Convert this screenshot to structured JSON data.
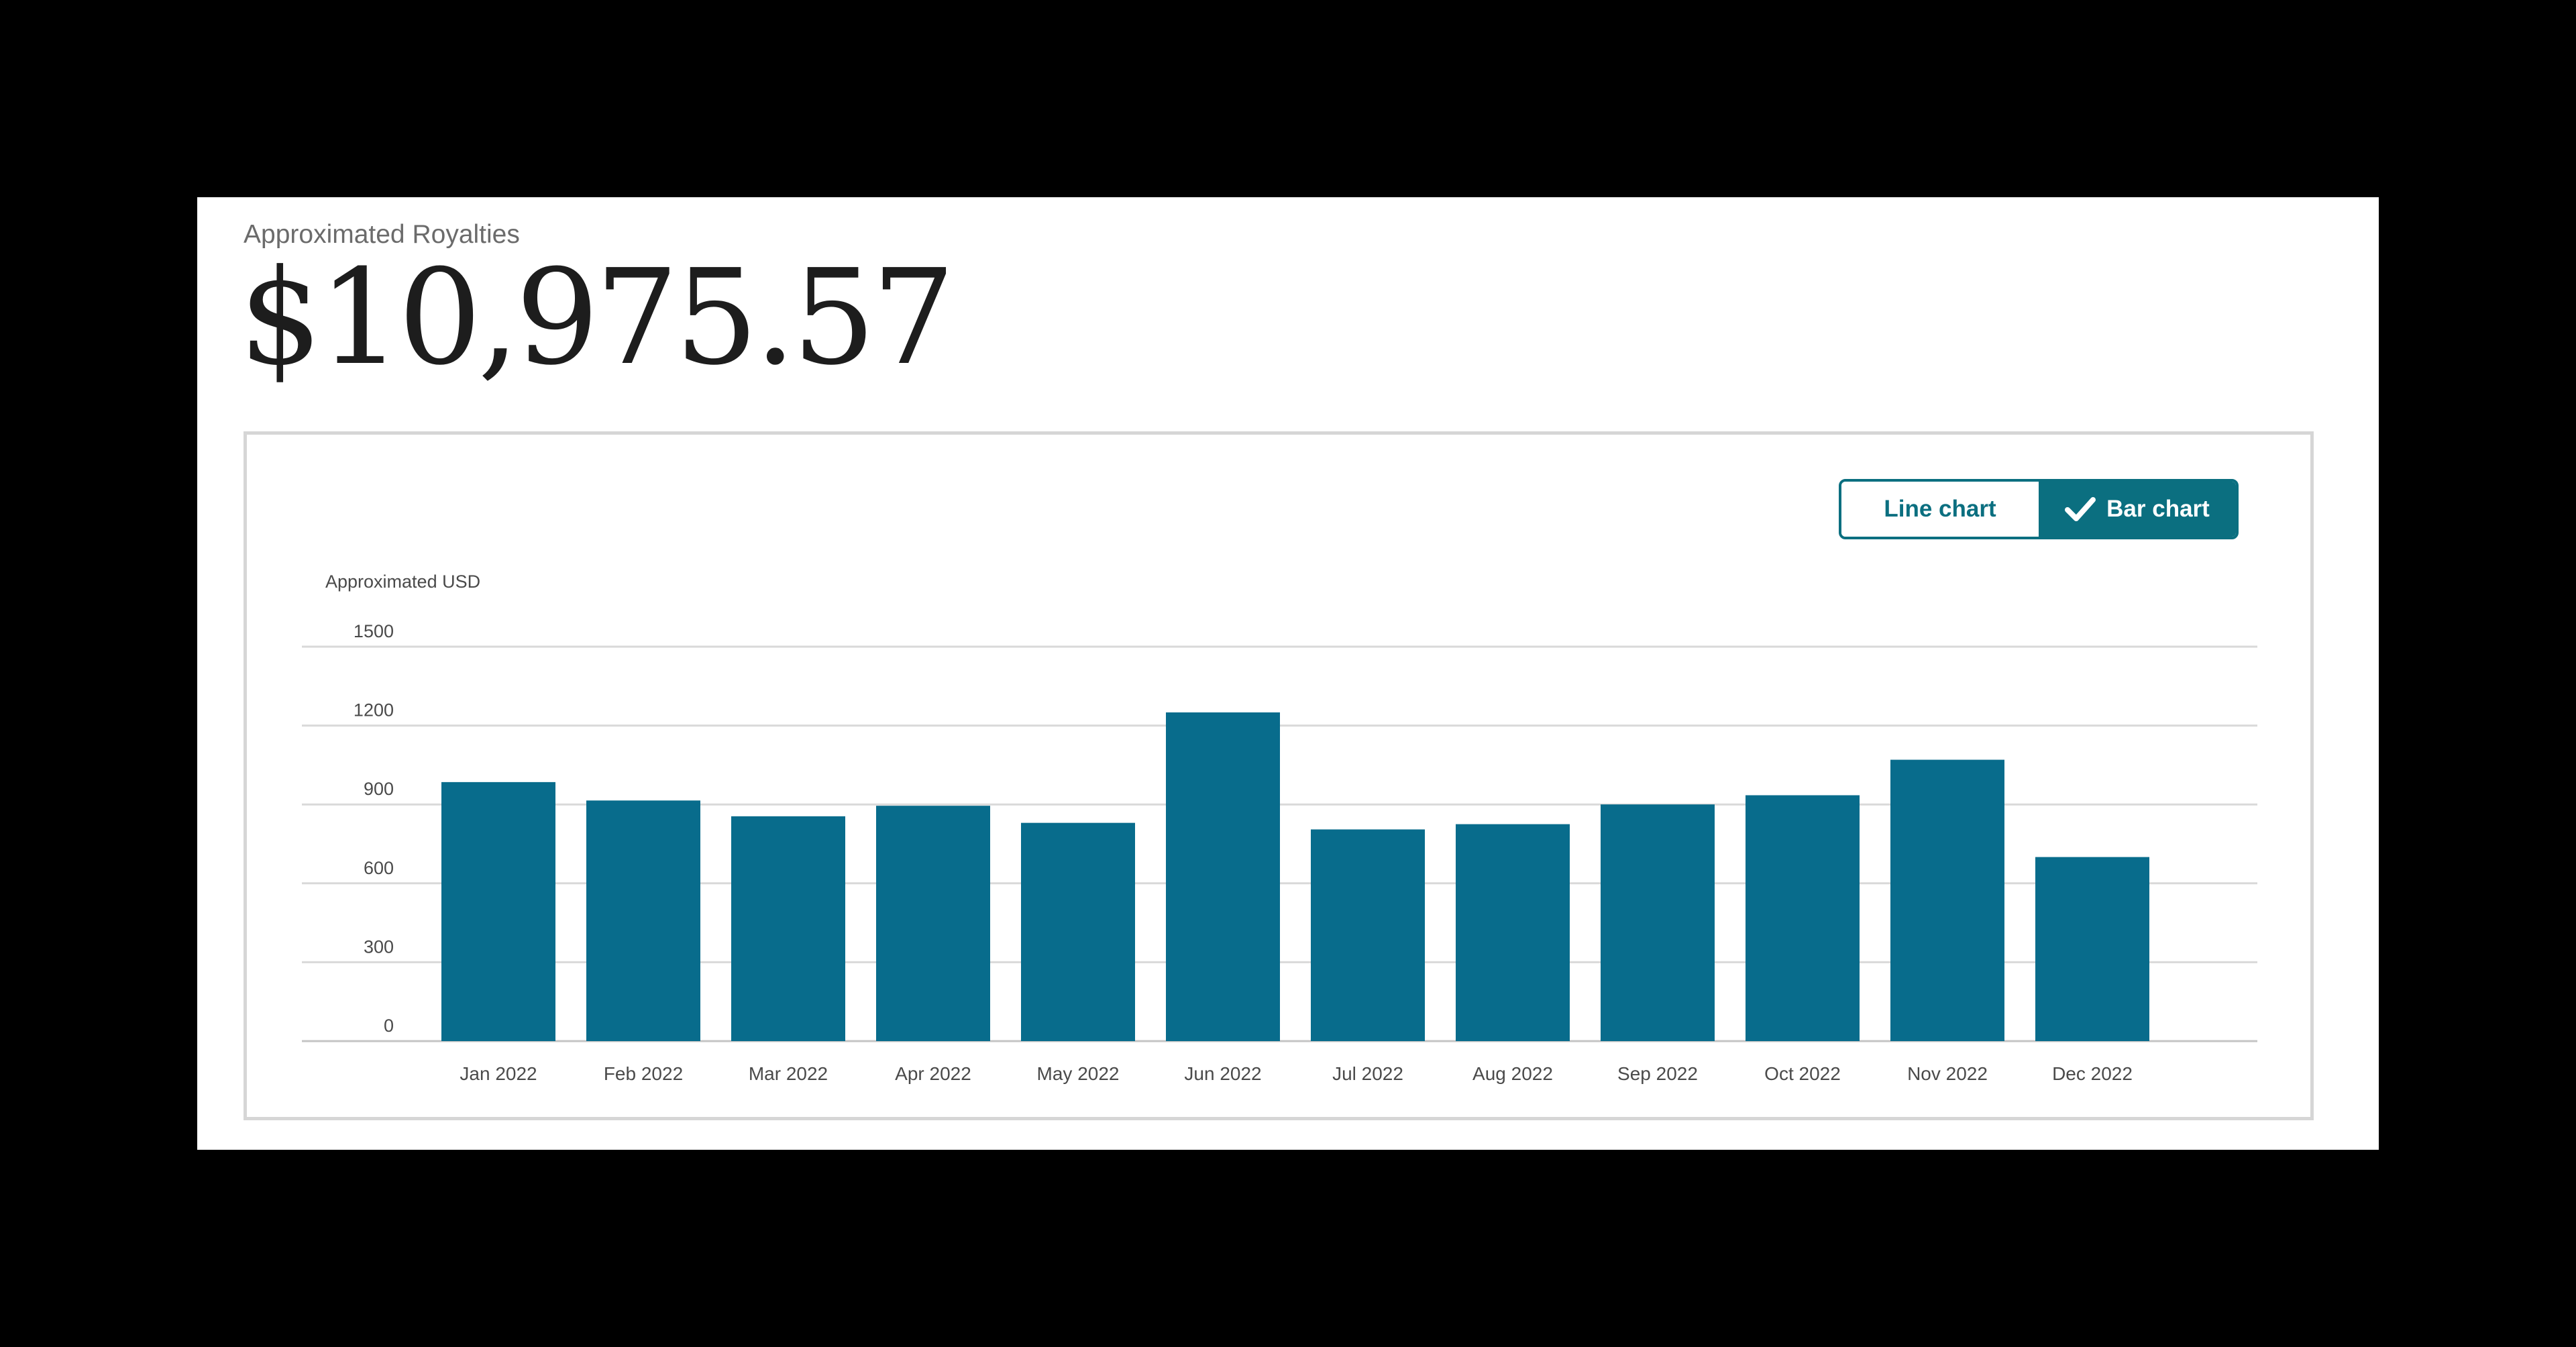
{
  "header": {
    "subtitle": "Approximated Royalties",
    "total": "$10,975.57"
  },
  "toggle": {
    "line_label": "Line chart",
    "bar_label": "Bar chart",
    "selected": "Bar chart",
    "check_icon": "check-icon"
  },
  "colors": {
    "bar": "#086c8c",
    "accent": "#0b6f80",
    "grid": "#d9d9d9",
    "axis_text": "#4a4a4a"
  },
  "chart_data": {
    "type": "bar",
    "ylabel": "Approximated USD",
    "xlabel": "",
    "categories": [
      "Jan 2022",
      "Feb 2022",
      "Mar 2022",
      "Apr 2022",
      "May 2022",
      "Jun 2022",
      "Jul 2022",
      "Aug 2022",
      "Sep 2022",
      "Oct 2022",
      "Nov 2022",
      "Dec 2022"
    ],
    "values": [
      985,
      915,
      855,
      895,
      830,
      1250,
      805,
      825,
      900,
      935,
      1070,
      700
    ],
    "ylim": [
      0,
      1500
    ],
    "yticks": [
      0,
      300,
      600,
      900,
      1200,
      1500
    ],
    "grid": true
  }
}
